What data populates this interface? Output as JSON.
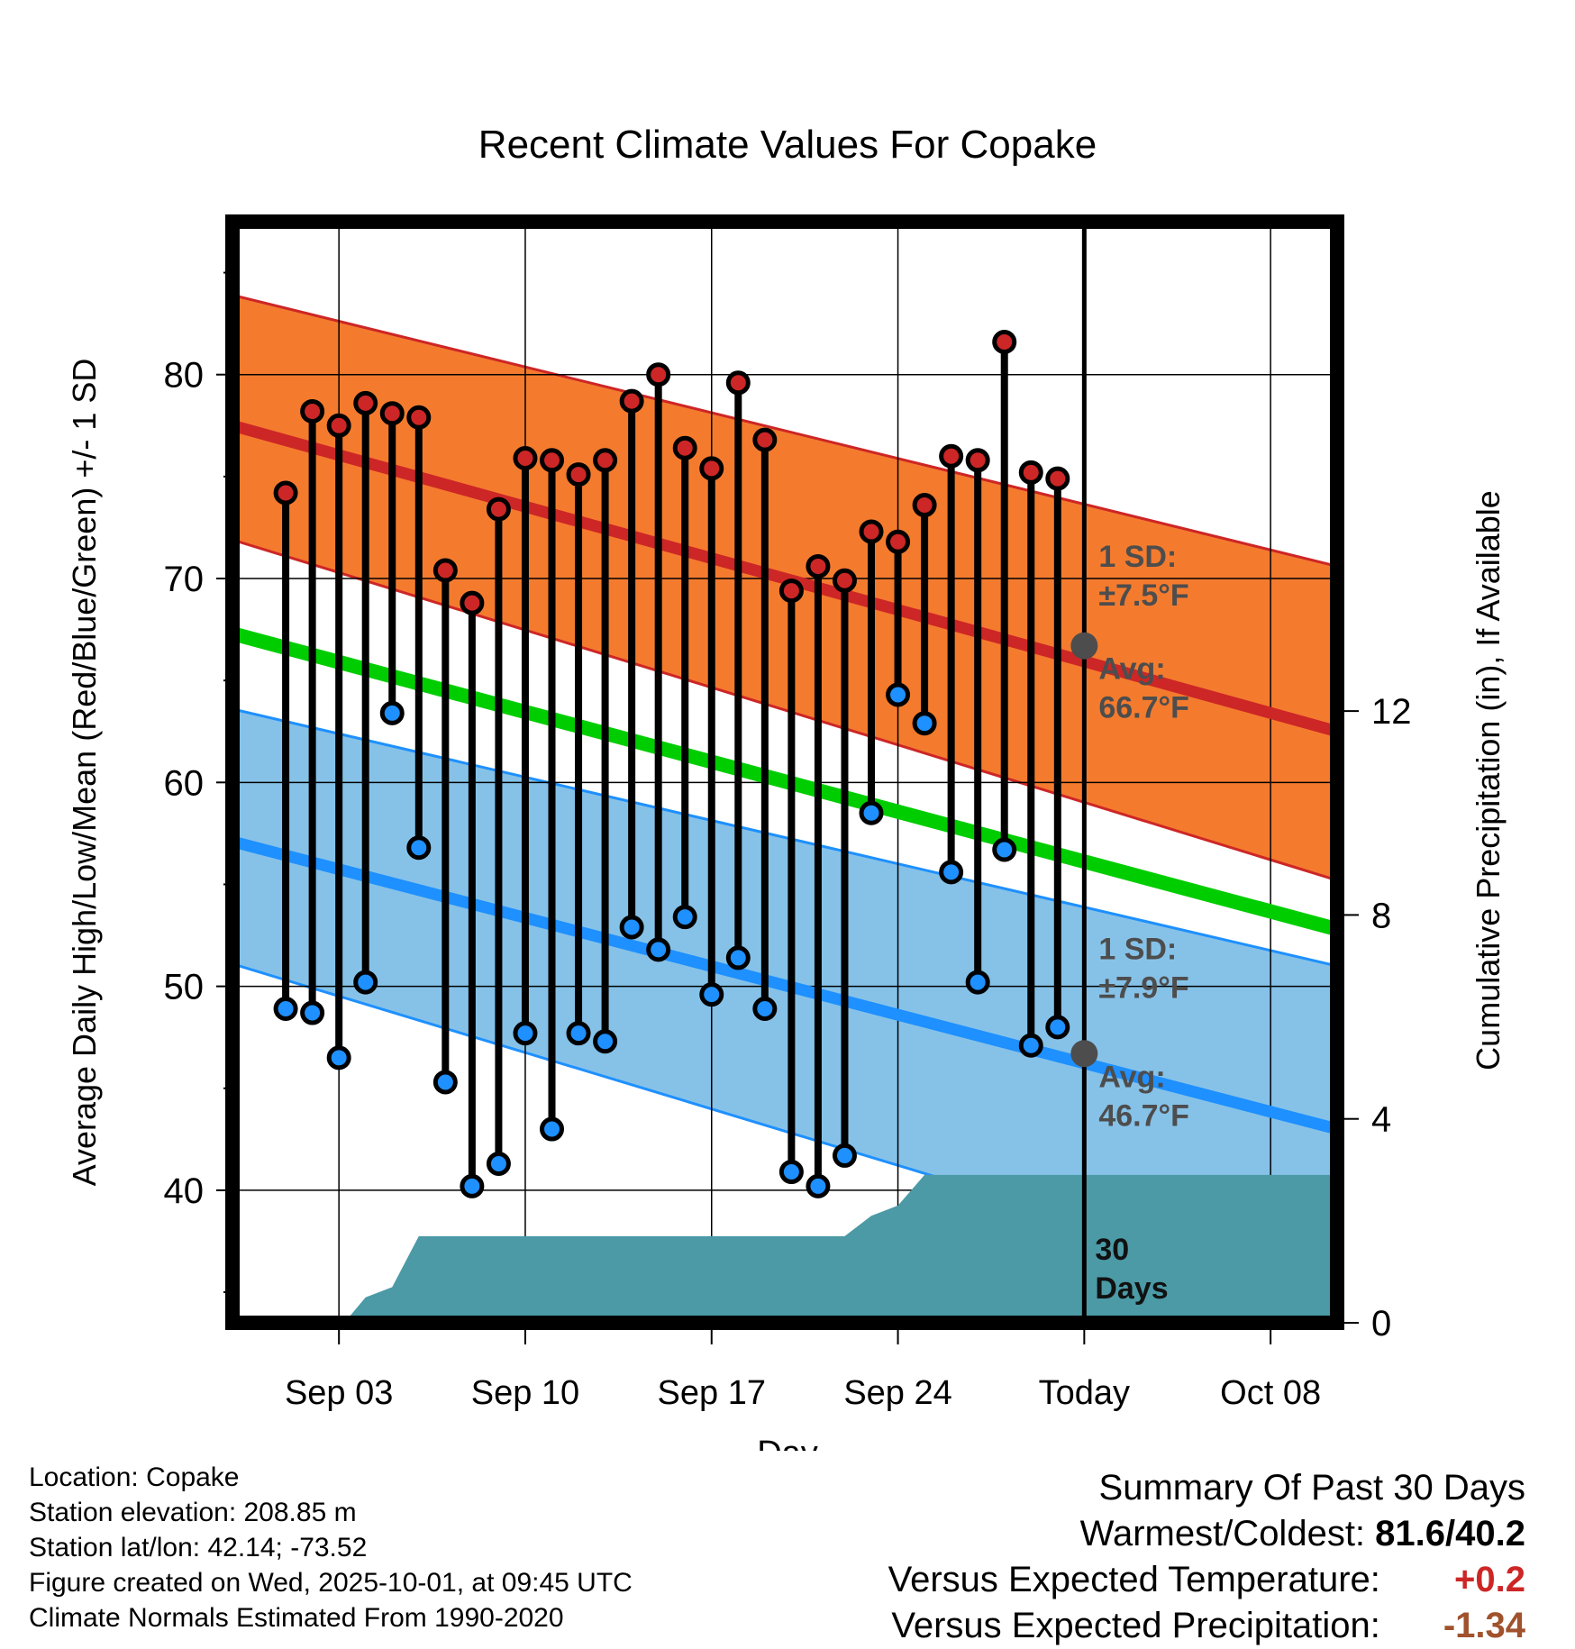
{
  "chart_data": {
    "type": "line",
    "title": "Recent Climate Values For Copake",
    "xlabel": "Day",
    "ylabel": "Average Daily High/Low/Mean (Red/Blue/Green) +/- 1 SD",
    "y2label": "Cumulative Precipitation (in), If Available",
    "x_range_days": [
      -32.0,
      9.5
    ],
    "ylim": [
      33.5,
      87.5
    ],
    "y2lim": [
      0,
      21.6
    ],
    "x_ticks": [
      {
        "day": -28,
        "label": "Sep 03"
      },
      {
        "day": -21,
        "label": "Sep 10"
      },
      {
        "day": -14,
        "label": "Sep 17"
      },
      {
        "day": -7,
        "label": "Sep 24"
      },
      {
        "day": 0,
        "label": "Today"
      },
      {
        "day": 7,
        "label": "Oct 08"
      }
    ],
    "y_ticks": [
      40,
      50,
      60,
      70,
      80
    ],
    "y2_ticks": [
      0,
      4,
      8,
      12
    ],
    "normals": {
      "high_mean": {
        "start": 77.5,
        "end": 62.5,
        "color": "#cd2626"
      },
      "high_band": {
        "start_low": 71.9,
        "start_high": 83.9,
        "end_low": 55.2,
        "end_high": 70.6,
        "color": "#f47b2e"
      },
      "low_mean": {
        "start": 57.1,
        "end": 43.0,
        "color": "#1e90ff"
      },
      "low_band": {
        "start_low": 51.1,
        "start_high": 63.6,
        "end_low": 34.7,
        "end_high": 51.0,
        "color": "#86c2e8"
      },
      "mean": {
        "start": 67.3,
        "end": 52.8,
        "color": "#00cd00"
      }
    },
    "series": [
      {
        "name": "Daily High",
        "color": "#cd2626",
        "days": [
          -30,
          -29,
          -28,
          -27,
          -26,
          -25,
          -24,
          -23,
          -22,
          -21,
          -20,
          -19,
          -18,
          -17,
          -16,
          -15,
          -14,
          -13,
          -12,
          -11,
          -10,
          -9,
          -8,
          -7,
          -6,
          -5,
          -4,
          -3,
          -2,
          -1
        ],
        "values": [
          74.2,
          78.2,
          77.5,
          78.6,
          78.1,
          77.9,
          70.4,
          68.8,
          73.4,
          75.9,
          75.8,
          75.1,
          75.8,
          78.7,
          80.0,
          76.4,
          75.4,
          79.6,
          76.8,
          69.4,
          70.6,
          69.9,
          72.3,
          71.8,
          73.6,
          76.0,
          75.8,
          81.6,
          75.2,
          74.9
        ]
      },
      {
        "name": "Daily Low",
        "color": "#1e90ff",
        "days": [
          -30,
          -29,
          -28,
          -27,
          -26,
          -25,
          -24,
          -23,
          -22,
          -21,
          -20,
          -19,
          -18,
          -17,
          -16,
          -15,
          -14,
          -13,
          -12,
          -11,
          -10,
          -9,
          -8,
          -7,
          -6,
          -5,
          -4,
          -3,
          -2,
          -1
        ],
        "values": [
          48.9,
          48.7,
          46.5,
          50.2,
          63.4,
          56.8,
          45.3,
          40.2,
          41.3,
          47.7,
          43.0,
          47.7,
          47.3,
          52.9,
          51.8,
          53.4,
          49.6,
          51.4,
          48.9,
          40.9,
          40.2,
          41.7,
          58.5,
          64.3,
          62.9,
          55.6,
          50.2,
          56.7,
          47.1,
          48.0
        ]
      }
    ],
    "precipitation": {
      "name": "Cumulative Precipitation",
      "color": "#4b9aa6",
      "days": [
        -32,
        -27.8,
        -27,
        -26,
        -25,
        -24,
        -23,
        -22,
        -21,
        -20,
        -19,
        -18,
        -17,
        -16,
        -15,
        -14,
        -13,
        -12,
        -11,
        -10,
        -9,
        -8,
        -7,
        -6,
        -5,
        -4,
        -3,
        -2,
        -1,
        0,
        9.5
      ],
      "values": [
        0,
        0,
        0.5,
        0.7,
        1.7,
        1.7,
        1.7,
        1.7,
        1.7,
        1.7,
        1.7,
        1.7,
        1.7,
        1.7,
        1.7,
        1.7,
        1.7,
        1.7,
        1.7,
        1.7,
        1.7,
        2.1,
        2.3,
        2.9,
        2.9,
        2.9,
        2.9,
        2.9,
        2.9,
        2.9,
        2.9
      ]
    },
    "today_markers": [
      {
        "label": "Avg:",
        "value_label": "66.7°F",
        "value": 66.7
      },
      {
        "label": "Avg:",
        "value_label": "46.7°F",
        "value": 46.7
      }
    ],
    "annotations": {
      "high_sd_label": "1 SD:",
      "high_sd_value": "±7.5°F",
      "low_sd_label": "1 SD:",
      "low_sd_value": "±7.9°F",
      "days_label_num": "30",
      "days_label_word": "Days"
    }
  },
  "station": {
    "location": "Location: Copake",
    "elevation": "Station elevation: 208.85 m",
    "latlon": "Station lat/lon: 42.14; -73.52",
    "created": "Figure created on Wed, 2025-10-01, at 09:45 UTC",
    "normals": "Climate Normals Estimated From 1990-2020"
  },
  "summary": {
    "title": "Summary Of Past 30 Days",
    "warmest_label": "Warmest/Coldest:",
    "warmest_value": "81.6/40.2",
    "temp_label": "Versus Expected Temperature:",
    "temp_value": "+0.2",
    "temp_color": "#cd2626",
    "precip_label": "Versus Expected Precipitation:",
    "precip_value": "-1.34",
    "precip_color": "#a0522d"
  }
}
